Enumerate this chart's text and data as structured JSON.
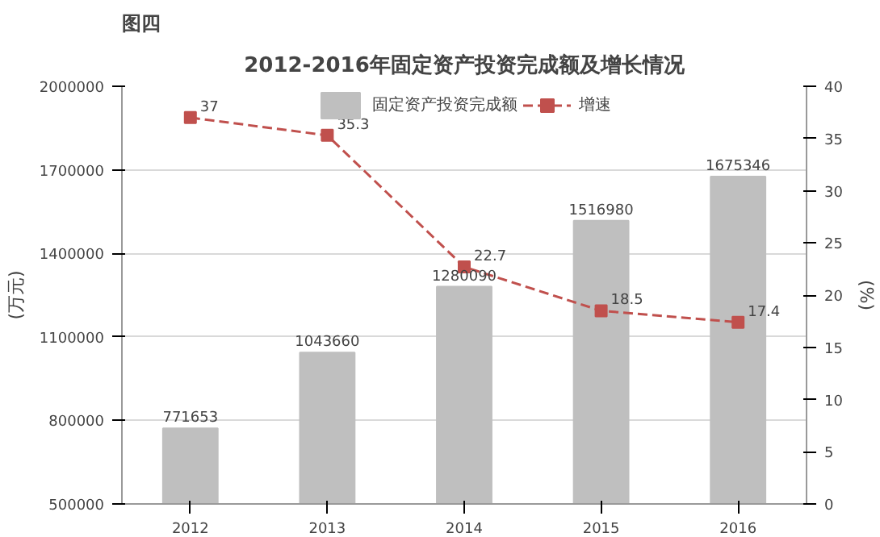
{
  "chart_data": {
    "type": "bar",
    "title": "2012-2016年固定资产投资完成额及增长情况",
    "annotations": [
      "图四"
    ],
    "ylabel": "(万元)",
    "y2label": "(%)",
    "categories": [
      "2012",
      "2013",
      "2014",
      "2015",
      "2016"
    ],
    "series": [
      {
        "name": "固定资产投资完成额",
        "color": "#bfbfbf",
        "values": [
          771653,
          1043660,
          1280090,
          1516980,
          1675346
        ]
      },
      {
        "name": "增速",
        "type": "line",
        "axis": "y2",
        "color": "#c0504d",
        "line_style": "dashed",
        "marker": "square",
        "values": [
          37,
          35.3,
          22.7,
          18.5,
          17.4
        ]
      }
    ],
    "ylim": [
      500000,
      2000000
    ],
    "yticks": [
      500000,
      800000,
      1100000,
      1400000,
      1700000,
      2000000
    ],
    "y2lim": [
      0,
      40
    ],
    "y2ticks": [
      0,
      5,
      10,
      15,
      20,
      25,
      30,
      35,
      40
    ],
    "grid": "y",
    "legend": "top",
    "data_labels": true
  }
}
